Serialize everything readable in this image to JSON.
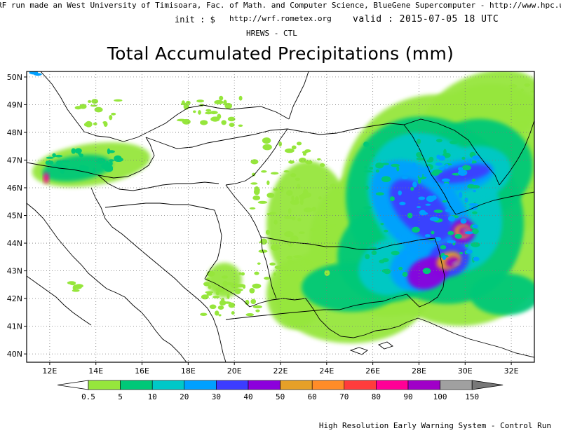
{
  "header": {
    "line1": "RF run made an West University of Timisoara, Fac. of Math. and Computer Science, BlueGene Supercomputer - http://www.hpc.uvt.ro",
    "init": "init : $",
    "url": "http://wrf.rometex.org",
    "valid": "valid : 2015-07-05  18 UTC",
    "model": "HREWS - CTL"
  },
  "title": "Total Accumulated Precipitations (mm)",
  "map": {
    "lat_range": [
      39.7,
      50.2
    ],
    "lon_range": [
      11.0,
      33.0
    ],
    "lat_labels": [
      "40N",
      "41N",
      "42N",
      "43N",
      "44N",
      "45N",
      "46N",
      "47N",
      "48N",
      "49N",
      "50N"
    ],
    "lon_labels": [
      "12E",
      "14E",
      "16E",
      "18E",
      "20E",
      "22E",
      "24E",
      "26E",
      "28E",
      "30E",
      "32E"
    ],
    "grid": "dotted"
  },
  "legend": {
    "labels": [
      "0.5",
      "5",
      "10",
      "20",
      "30",
      "40",
      "50",
      "60",
      "70",
      "80",
      "90",
      "100",
      "150"
    ],
    "colors": [
      "#96e63c",
      "#00c878",
      "#00c8c8",
      "#00a0ff",
      "#3c3cff",
      "#8c00dc",
      "#e6a028",
      "#ff8c28",
      "#ff3c3c",
      "#ff0096",
      "#a000c8",
      "#a0a0a0"
    ],
    "low_color": "#ffffff",
    "high_color": "#787878"
  },
  "footer": "High Resolution Early Warning System - Control Run"
}
